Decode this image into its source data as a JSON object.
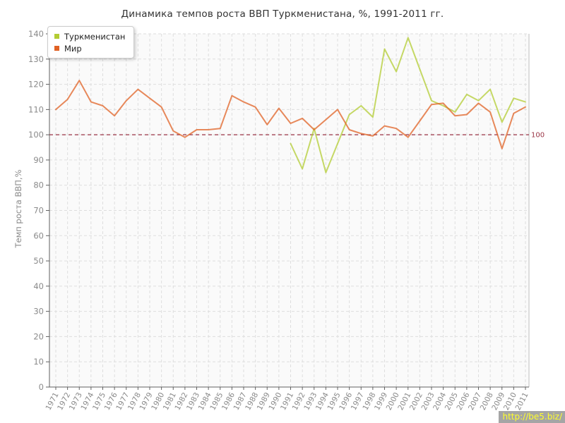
{
  "title": "Динамика темпов роста ВВП Туркменистана, %, 1991-2011 гг.",
  "y_axis_label": "Темп роста ВВП,%",
  "watermark": "http://be5.biz/",
  "colors": {
    "turkmenistan": "#b3cc33",
    "world": "#e06124",
    "guide_line": "#993344",
    "grid": "#dedede",
    "axis": "#606060",
    "tick_text": "#8a8a8a",
    "plot_background": "#fafafa",
    "watermark_bg": "#a5a5a5",
    "watermark_text": "#ffff2b"
  },
  "chart_data": {
    "type": "line",
    "title": "Динамика темпов роста ВВП Туркменистана, %, 1991-2011 гг.",
    "xlabel": "",
    "ylabel": "Темп роста ВВП,%",
    "ylim": [
      0,
      140
    ],
    "ytick_step": 10,
    "grid": true,
    "legend_position": "top-left",
    "guide": {
      "value": 100,
      "label": "100"
    },
    "x": [
      1971,
      1972,
      1973,
      1974,
      1975,
      1976,
      1977,
      1978,
      1979,
      1980,
      1981,
      1982,
      1983,
      1984,
      1985,
      1986,
      1987,
      1988,
      1989,
      1990,
      1991,
      1992,
      1993,
      1994,
      1995,
      1996,
      1997,
      1998,
      1999,
      2000,
      2001,
      2002,
      2003,
      2004,
      2005,
      2006,
      2007,
      2008,
      2009,
      2010,
      2011
    ],
    "series": [
      {
        "name": "Туркменистан",
        "color": "#b3cc33",
        "values": [
          null,
          null,
          null,
          null,
          null,
          null,
          null,
          null,
          null,
          null,
          null,
          null,
          null,
          null,
          null,
          null,
          null,
          null,
          null,
          null,
          96.5,
          86.5,
          102.5,
          85,
          96.5,
          108,
          111.5,
          107,
          134,
          125,
          138.5,
          126,
          113.5,
          111.5,
          109,
          116,
          113.5,
          118,
          105,
          114.5,
          113
        ]
      },
      {
        "name": "Мир",
        "color": "#e06124",
        "values": [
          110,
          114,
          121.5,
          113,
          111.5,
          107.5,
          113.5,
          118,
          114.5,
          111,
          101.5,
          99,
          102,
          102,
          102.5,
          115.5,
          113,
          111,
          104,
          110.5,
          104.5,
          106.5,
          102,
          106,
          110,
          102,
          100.5,
          99.5,
          103.5,
          102.5,
          99,
          105.5,
          112,
          112.5,
          107.5,
          108,
          112.5,
          109,
          94.5,
          108.5,
          111
        ]
      }
    ]
  }
}
